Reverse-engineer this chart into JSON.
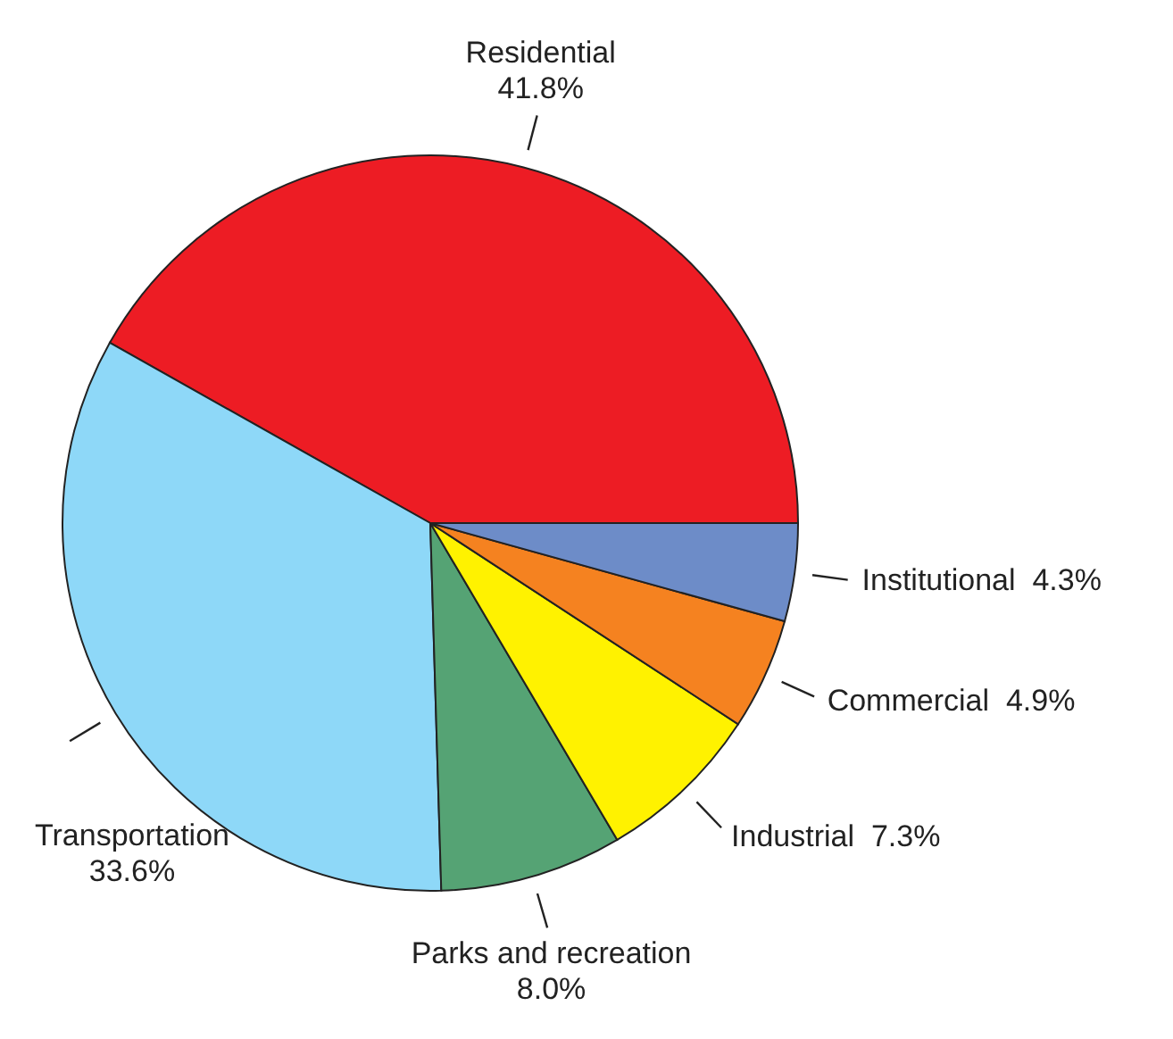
{
  "chart_data": {
    "type": "pie",
    "categories": [
      "Residential",
      "Transportation",
      "Parks and recreation",
      "Industrial",
      "Commercial",
      "Institutional"
    ],
    "values": [
      41.8,
      33.6,
      8.0,
      7.3,
      4.9,
      4.3
    ],
    "value_labels": [
      "41.8%",
      "33.6%",
      "8.0%",
      "7.3%",
      "4.9%",
      "4.3%"
    ],
    "colors": [
      "#ed1c24",
      "#8ed8f8",
      "#55a374",
      "#fff200",
      "#f58220",
      "#6d8cc8"
    ]
  }
}
